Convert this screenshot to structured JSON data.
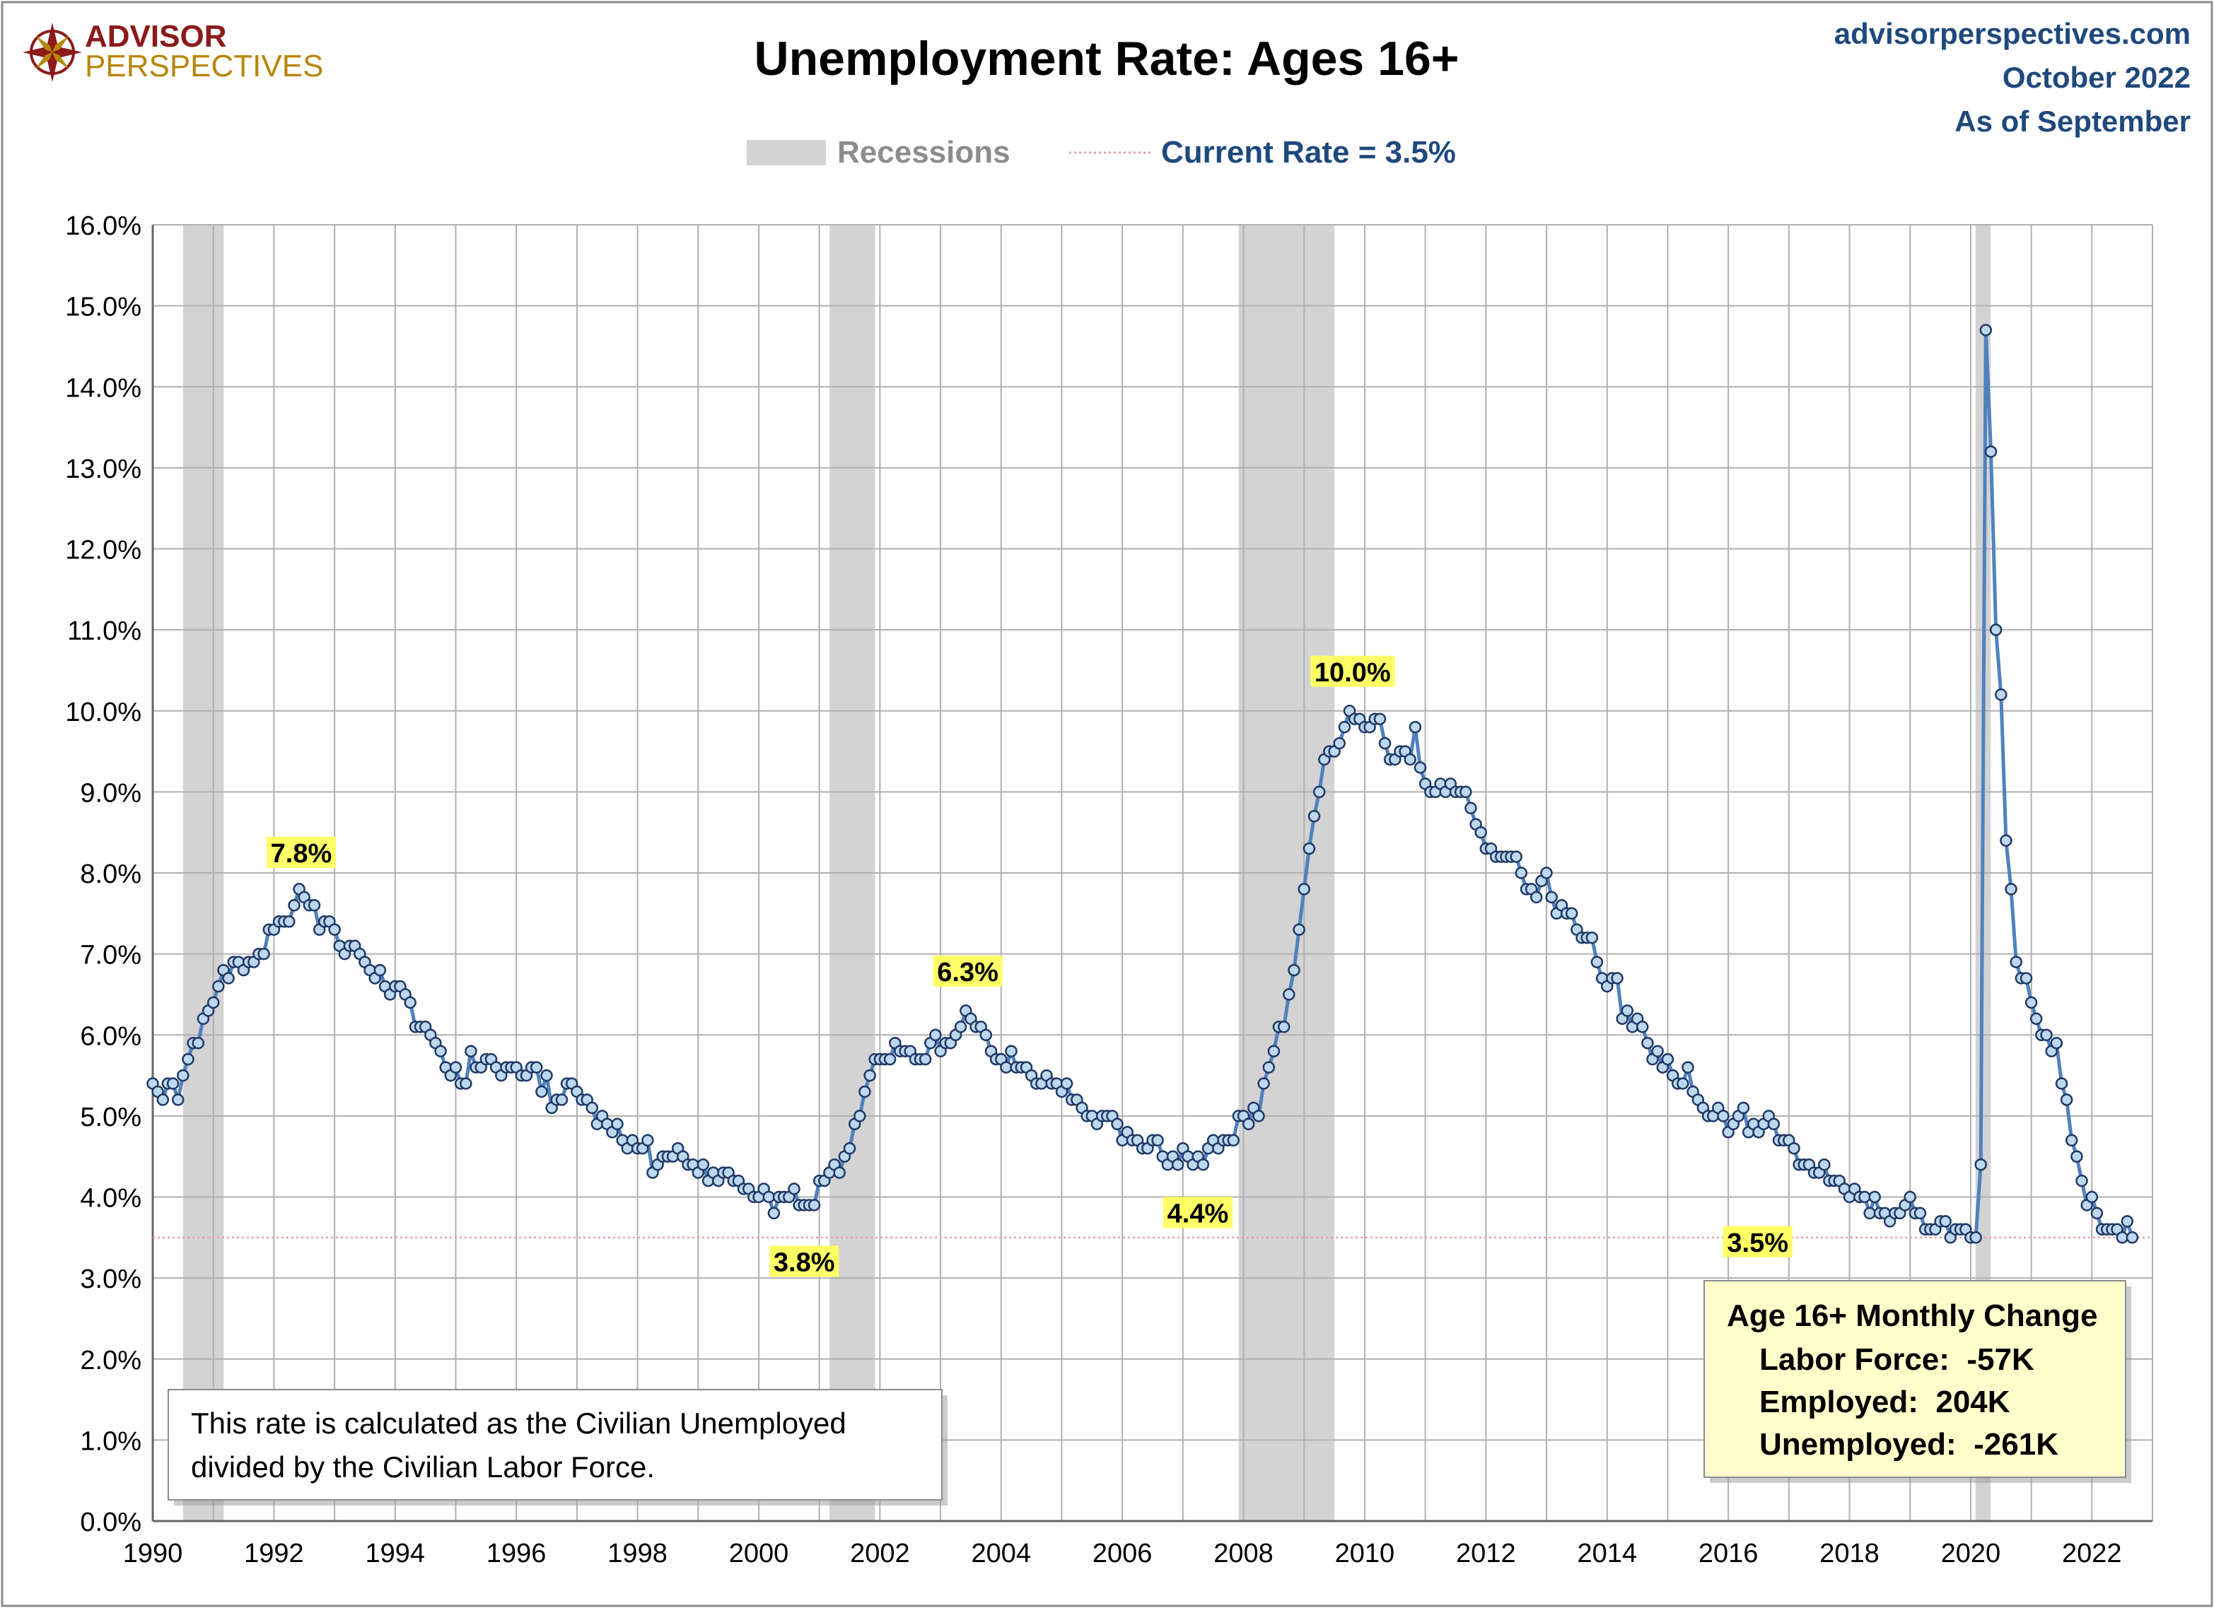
{
  "header": {
    "logo_top": "ADVISOR",
    "logo_bottom": "PERSPECTIVES",
    "title": "Unemployment Rate: Ages 16+",
    "site": "advisorperspectives.com",
    "date": "October 2022",
    "as_of": "As of September"
  },
  "legend": {
    "recessions_label": "Recessions",
    "current_label": "Current Rate = 3.5%"
  },
  "note": {
    "line1": "This rate is calculated as the Civilian Unemployed",
    "line2": "divided by the Civilian Labor Force."
  },
  "summary": {
    "title": "Age 16+ Monthly Change",
    "labor_force": "Labor Force:  -57K",
    "employed": "Employed:  204K",
    "unemployed": "Unemployed:  -261K"
  },
  "colors": {
    "line": "#4F81BD",
    "marker_fill": "#BDD7EE",
    "marker_stroke": "#1F3864",
    "recession": "#D3D3D3",
    "grid": "#B0B0B0",
    "title_blue": "#1F497D",
    "label_bg": "#FFFF66",
    "summary_bg": "#FFFFCC",
    "current_line": "#E8A0A8"
  },
  "chart_data": {
    "type": "line",
    "title": "Unemployment Rate: Ages 16+",
    "xlim": [
      1990,
      2023
    ],
    "ylim": [
      0,
      16
    ],
    "x_ticks": [
      "1990",
      "1992",
      "1994",
      "1996",
      "1998",
      "2000",
      "2002",
      "2004",
      "2006",
      "2008",
      "2010",
      "2012",
      "2014",
      "2016",
      "2018",
      "2020",
      "2022"
    ],
    "y_ticks": [
      "0.0%",
      "1.0%",
      "2.0%",
      "3.0%",
      "4.0%",
      "5.0%",
      "6.0%",
      "7.0%",
      "8.0%",
      "9.0%",
      "10.0%",
      "11.0%",
      "12.0%",
      "13.0%",
      "14.0%",
      "15.0%",
      "16.0%"
    ],
    "grid": true,
    "recessions": [
      [
        1990.5,
        1991.17
      ],
      [
        2001.17,
        2001.92
      ],
      [
        2007.92,
        2009.5
      ],
      [
        2020.08,
        2020.33
      ]
    ],
    "current_rate": 3.5,
    "annotations": [
      {
        "label": "7.8%",
        "x": 1992.45,
        "y": 7.8
      },
      {
        "label": "3.8%",
        "x": 2000.4,
        "y": 3.8
      },
      {
        "label": "6.3%",
        "x": 2003.45,
        "y": 6.3
      },
      {
        "label": "4.4%",
        "x": 2006.92,
        "y": 4.4
      },
      {
        "label": "10.0%",
        "x": 2009.8,
        "y": 10.0
      },
      {
        "label": "3.5%",
        "x": 2022.67,
        "y": 3.5
      }
    ],
    "series": [
      {
        "start": 1990,
        "values": [
          5.4,
          5.3,
          5.2,
          5.4,
          5.4,
          5.2,
          5.5,
          5.7,
          5.9,
          5.9,
          6.2,
          6.3,
          6.4,
          6.6,
          6.8,
          6.7,
          6.9,
          6.9,
          6.8,
          6.9,
          6.9,
          7.0,
          7.0,
          7.3,
          7.3,
          7.4,
          7.4,
          7.4,
          7.6,
          7.8,
          7.7,
          7.6,
          7.6,
          7.3,
          7.4,
          7.4,
          7.3,
          7.1,
          7.0,
          7.1,
          7.1,
          7.0,
          6.9,
          6.8,
          6.7,
          6.8,
          6.6,
          6.5,
          6.6,
          6.6,
          6.5,
          6.4,
          6.1,
          6.1,
          6.1,
          6.0,
          5.9,
          5.8,
          5.6,
          5.5,
          5.6,
          5.4,
          5.4,
          5.8,
          5.6,
          5.6,
          5.7,
          5.7,
          5.6,
          5.5,
          5.6,
          5.6,
          5.6,
          5.5,
          5.5,
          5.6,
          5.6,
          5.3,
          5.5,
          5.1,
          5.2,
          5.2,
          5.4,
          5.4,
          5.3,
          5.2,
          5.2,
          5.1,
          4.9,
          5.0,
          4.9,
          4.8,
          4.9,
          4.7,
          4.6,
          4.7,
          4.6,
          4.6,
          4.7,
          4.3,
          4.4,
          4.5,
          4.5,
          4.5,
          4.6,
          4.5,
          4.4,
          4.4,
          4.3,
          4.4,
          4.2,
          4.3,
          4.2,
          4.3,
          4.3,
          4.2,
          4.2,
          4.1,
          4.1,
          4.0,
          4.0,
          4.1,
          4.0,
          3.8,
          4.0,
          4.0,
          4.0,
          4.1,
          3.9,
          3.9,
          3.9,
          3.9,
          4.2,
          4.2,
          4.3,
          4.4,
          4.3,
          4.5,
          4.6,
          4.9,
          5.0,
          5.3,
          5.5,
          5.7,
          5.7,
          5.7,
          5.7,
          5.9,
          5.8,
          5.8,
          5.8,
          5.7,
          5.7,
          5.7,
          5.9,
          6.0,
          5.8,
          5.9,
          5.9,
          6.0,
          6.1,
          6.3,
          6.2,
          6.1,
          6.1,
          6.0,
          5.8,
          5.7,
          5.7,
          5.6,
          5.8,
          5.6,
          5.6,
          5.6,
          5.5,
          5.4,
          5.4,
          5.5,
          5.4,
          5.4,
          5.3,
          5.4,
          5.2,
          5.2,
          5.1,
          5.0,
          5.0,
          4.9,
          5.0,
          5.0,
          5.0,
          4.9,
          4.7,
          4.8,
          4.7,
          4.7,
          4.6,
          4.6,
          4.7,
          4.7,
          4.5,
          4.4,
          4.5,
          4.4,
          4.6,
          4.5,
          4.4,
          4.5,
          4.4,
          4.6,
          4.7,
          4.6,
          4.7,
          4.7,
          4.7,
          5.0,
          5.0,
          4.9,
          5.1,
          5.0,
          5.4,
          5.6,
          5.8,
          6.1,
          6.1,
          6.5,
          6.8,
          7.3,
          7.8,
          8.3,
          8.7,
          9.0,
          9.4,
          9.5,
          9.5,
          9.6,
          9.8,
          10.0,
          9.9,
          9.9,
          9.8,
          9.8,
          9.9,
          9.9,
          9.6,
          9.4,
          9.4,
          9.5,
          9.5,
          9.4,
          9.8,
          9.3,
          9.1,
          9.0,
          9.0,
          9.1,
          9.0,
          9.1,
          9.0,
          9.0,
          9.0,
          8.8,
          8.6,
          8.5,
          8.3,
          8.3,
          8.2,
          8.2,
          8.2,
          8.2,
          8.2,
          8.0,
          7.8,
          7.8,
          7.7,
          7.9,
          8.0,
          7.7,
          7.5,
          7.6,
          7.5,
          7.5,
          7.3,
          7.2,
          7.2,
          7.2,
          6.9,
          6.7,
          6.6,
          6.7,
          6.7,
          6.2,
          6.3,
          6.1,
          6.2,
          6.1,
          5.9,
          5.7,
          5.8,
          5.6,
          5.7,
          5.5,
          5.4,
          5.4,
          5.6,
          5.3,
          5.2,
          5.1,
          5.0,
          5.0,
          5.1,
          5.0,
          4.8,
          4.9,
          5.0,
          5.1,
          4.8,
          4.9,
          4.8,
          4.9,
          5.0,
          4.9,
          4.7,
          4.7,
          4.7,
          4.6,
          4.4,
          4.4,
          4.4,
          4.3,
          4.3,
          4.4,
          4.2,
          4.2,
          4.2,
          4.1,
          4.0,
          4.1,
          4.0,
          4.0,
          3.8,
          4.0,
          3.8,
          3.8,
          3.7,
          3.8,
          3.8,
          3.9,
          4.0,
          3.8,
          3.8,
          3.6,
          3.6,
          3.6,
          3.7,
          3.7,
          3.5,
          3.6,
          3.6,
          3.6,
          3.5,
          3.5,
          4.4,
          14.7,
          13.2,
          11.0,
          10.2,
          8.4,
          7.8,
          6.9,
          6.7,
          6.7,
          6.4,
          6.2,
          6.0,
          6.0,
          5.8,
          5.9,
          5.4,
          5.2,
          4.7,
          4.5,
          4.2,
          3.9,
          4.0,
          3.8,
          3.6,
          3.6,
          3.6,
          3.6,
          3.5,
          3.7,
          3.5
        ]
      }
    ]
  }
}
